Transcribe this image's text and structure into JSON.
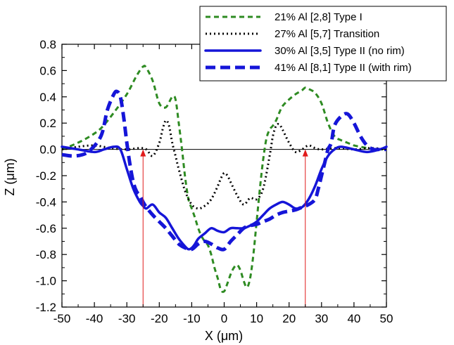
{
  "chart_data": {
    "type": "line",
    "xlabel": "X (μm)",
    "ylabel": "Z (μm)",
    "xlim": [
      -50,
      50
    ],
    "ylim": [
      -1.2,
      0.8
    ],
    "x_ticks": [
      -50,
      -40,
      -30,
      -20,
      -10,
      0,
      10,
      20,
      30,
      40,
      50
    ],
    "y_ticks": [
      -1.2,
      -1.0,
      -0.8,
      -0.6,
      -0.4,
      -0.2,
      0.0,
      0.2,
      0.4,
      0.6,
      0.8
    ],
    "y_tick_labels": [
      "-1.2",
      "-1.0",
      "-0.8",
      "-0.6",
      "-0.4",
      "-0.2",
      "0.0",
      "0.2",
      "0.4",
      "0.6",
      "0.8"
    ],
    "legend_position": "top-right",
    "series": [
      {
        "name": "21% Al [2,8] Type I",
        "style": "dashed",
        "color": "#2e8b22",
        "x": [
          -50,
          -46,
          -42,
          -38,
          -34,
          -30,
          -27,
          -25,
          -24,
          -22,
          -20,
          -18,
          -16,
          -15,
          -14,
          -13,
          -12,
          -11,
          -10,
          -9,
          -8,
          -7,
          -6,
          -5,
          -4,
          -3,
          -2,
          -1,
          0,
          1,
          2,
          3,
          4,
          5,
          6,
          7,
          8,
          9,
          10,
          11,
          12,
          13,
          14,
          15,
          16,
          17,
          18,
          20,
          22,
          24,
          25,
          26,
          28,
          30,
          32,
          34,
          36,
          38,
          40,
          42,
          44,
          46,
          48,
          50
        ],
        "y": [
          0.0,
          0.04,
          0.09,
          0.16,
          0.28,
          0.42,
          0.56,
          0.63,
          0.62,
          0.52,
          0.35,
          0.32,
          0.4,
          0.38,
          0.2,
          0.0,
          -0.22,
          -0.38,
          -0.45,
          -0.52,
          -0.6,
          -0.66,
          -0.7,
          -0.73,
          -0.8,
          -0.9,
          -0.98,
          -1.07,
          -1.08,
          -1.02,
          -0.95,
          -0.9,
          -0.88,
          -0.92,
          -1.0,
          -1.05,
          -0.98,
          -0.8,
          -0.55,
          -0.3,
          -0.08,
          0.08,
          0.15,
          0.18,
          0.22,
          0.28,
          0.33,
          0.38,
          0.42,
          0.45,
          0.47,
          0.46,
          0.43,
          0.35,
          0.2,
          0.1,
          0.07,
          0.05,
          0.03,
          0.02,
          0.01,
          0.0,
          0.0,
          0.0
        ]
      },
      {
        "name": "27% Al [5,7] Transition",
        "style": "dotted",
        "color": "#000000",
        "x": [
          -50,
          -45,
          -40,
          -35,
          -30,
          -26,
          -24,
          -22,
          -20,
          -19,
          -18,
          -17,
          -16,
          -15,
          -14,
          -12,
          -10,
          -8,
          -6,
          -4,
          -2,
          -1,
          0,
          1,
          2,
          4,
          6,
          8,
          10,
          12,
          14,
          15,
          16,
          17,
          18,
          20,
          22,
          24,
          26,
          28,
          30,
          35,
          40,
          45,
          50
        ],
        "y": [
          0.0,
          0.02,
          0.03,
          0.01,
          0.0,
          0.01,
          0.0,
          -0.05,
          0.05,
          0.15,
          0.22,
          0.18,
          0.05,
          -0.05,
          -0.15,
          -0.32,
          -0.42,
          -0.45,
          -0.43,
          -0.38,
          -0.28,
          -0.22,
          -0.18,
          -0.2,
          -0.25,
          -0.35,
          -0.42,
          -0.37,
          -0.38,
          -0.3,
          -0.05,
          0.1,
          0.18,
          0.19,
          0.15,
          0.05,
          -0.02,
          0.0,
          0.03,
          0.01,
          0.0,
          0.01,
          0.0,
          0.01,
          0.0
        ]
      },
      {
        "name": "30% Al [3,5] Type II (no rim)",
        "style": "solid",
        "color": "#1515d8",
        "x": [
          -50,
          -45,
          -40,
          -37,
          -34,
          -32,
          -30,
          -28,
          -26,
          -25,
          -24,
          -22,
          -20,
          -18,
          -16,
          -14,
          -12,
          -11,
          -10,
          -9,
          -8,
          -6,
          -4,
          -2,
          0,
          2,
          4,
          6,
          8,
          10,
          12,
          14,
          16,
          18,
          20,
          22,
          24,
          26,
          28,
          30,
          32,
          34,
          36,
          40,
          44,
          48,
          50
        ],
        "y": [
          0.02,
          0.0,
          -0.02,
          0.0,
          0.02,
          0.0,
          -0.15,
          -0.3,
          -0.4,
          -0.43,
          -0.45,
          -0.42,
          -0.48,
          -0.52,
          -0.6,
          -0.68,
          -0.74,
          -0.76,
          -0.75,
          -0.72,
          -0.68,
          -0.64,
          -0.6,
          -0.62,
          -0.63,
          -0.6,
          -0.6,
          -0.6,
          -0.58,
          -0.55,
          -0.5,
          -0.45,
          -0.42,
          -0.4,
          -0.42,
          -0.45,
          -0.44,
          -0.38,
          -0.28,
          -0.15,
          -0.05,
          0.0,
          0.02,
          0.0,
          -0.02,
          0.0,
          0.02
        ]
      },
      {
        "name": "41% Al [8,1] Type II (with rim)",
        "style": "dash-long",
        "color": "#1515d8",
        "x": [
          -50,
          -46,
          -42,
          -38,
          -36,
          -34,
          -33,
          -32,
          -31,
          -30,
          -29,
          -28,
          -27,
          -26,
          -25,
          -24,
          -22,
          -20,
          -18,
          -16,
          -14,
          -12,
          -10,
          -8,
          -6,
          -4,
          -2,
          0,
          2,
          4,
          6,
          8,
          10,
          12,
          14,
          16,
          18,
          20,
          22,
          24,
          26,
          28,
          29,
          30,
          31,
          32,
          33,
          34,
          36,
          38,
          40,
          42,
          44,
          46,
          48,
          50
        ],
        "y": [
          -0.04,
          -0.05,
          -0.02,
          0.1,
          0.3,
          0.42,
          0.44,
          0.4,
          0.25,
          0.05,
          -0.12,
          -0.25,
          -0.32,
          -0.35,
          -0.4,
          -0.44,
          -0.5,
          -0.55,
          -0.6,
          -0.66,
          -0.72,
          -0.75,
          -0.76,
          -0.72,
          -0.7,
          -0.72,
          -0.75,
          -0.76,
          -0.7,
          -0.65,
          -0.6,
          -0.58,
          -0.57,
          -0.55,
          -0.53,
          -0.5,
          -0.48,
          -0.47,
          -0.46,
          -0.44,
          -0.42,
          -0.38,
          -0.3,
          -0.2,
          -0.1,
          0.0,
          0.05,
          0.18,
          0.25,
          0.27,
          0.2,
          0.1,
          0.03,
          0.0,
          0.0,
          0.0
        ]
      }
    ],
    "annotations": [
      {
        "type": "vertical-arrow",
        "x": -25,
        "from_y": -1.2,
        "to_y": 0.0,
        "color": "#e11b1b"
      },
      {
        "type": "vertical-arrow",
        "x": 25,
        "from_y": -1.2,
        "to_y": 0.0,
        "color": "#e11b1b"
      }
    ],
    "zero_line": true,
    "grid": false
  }
}
